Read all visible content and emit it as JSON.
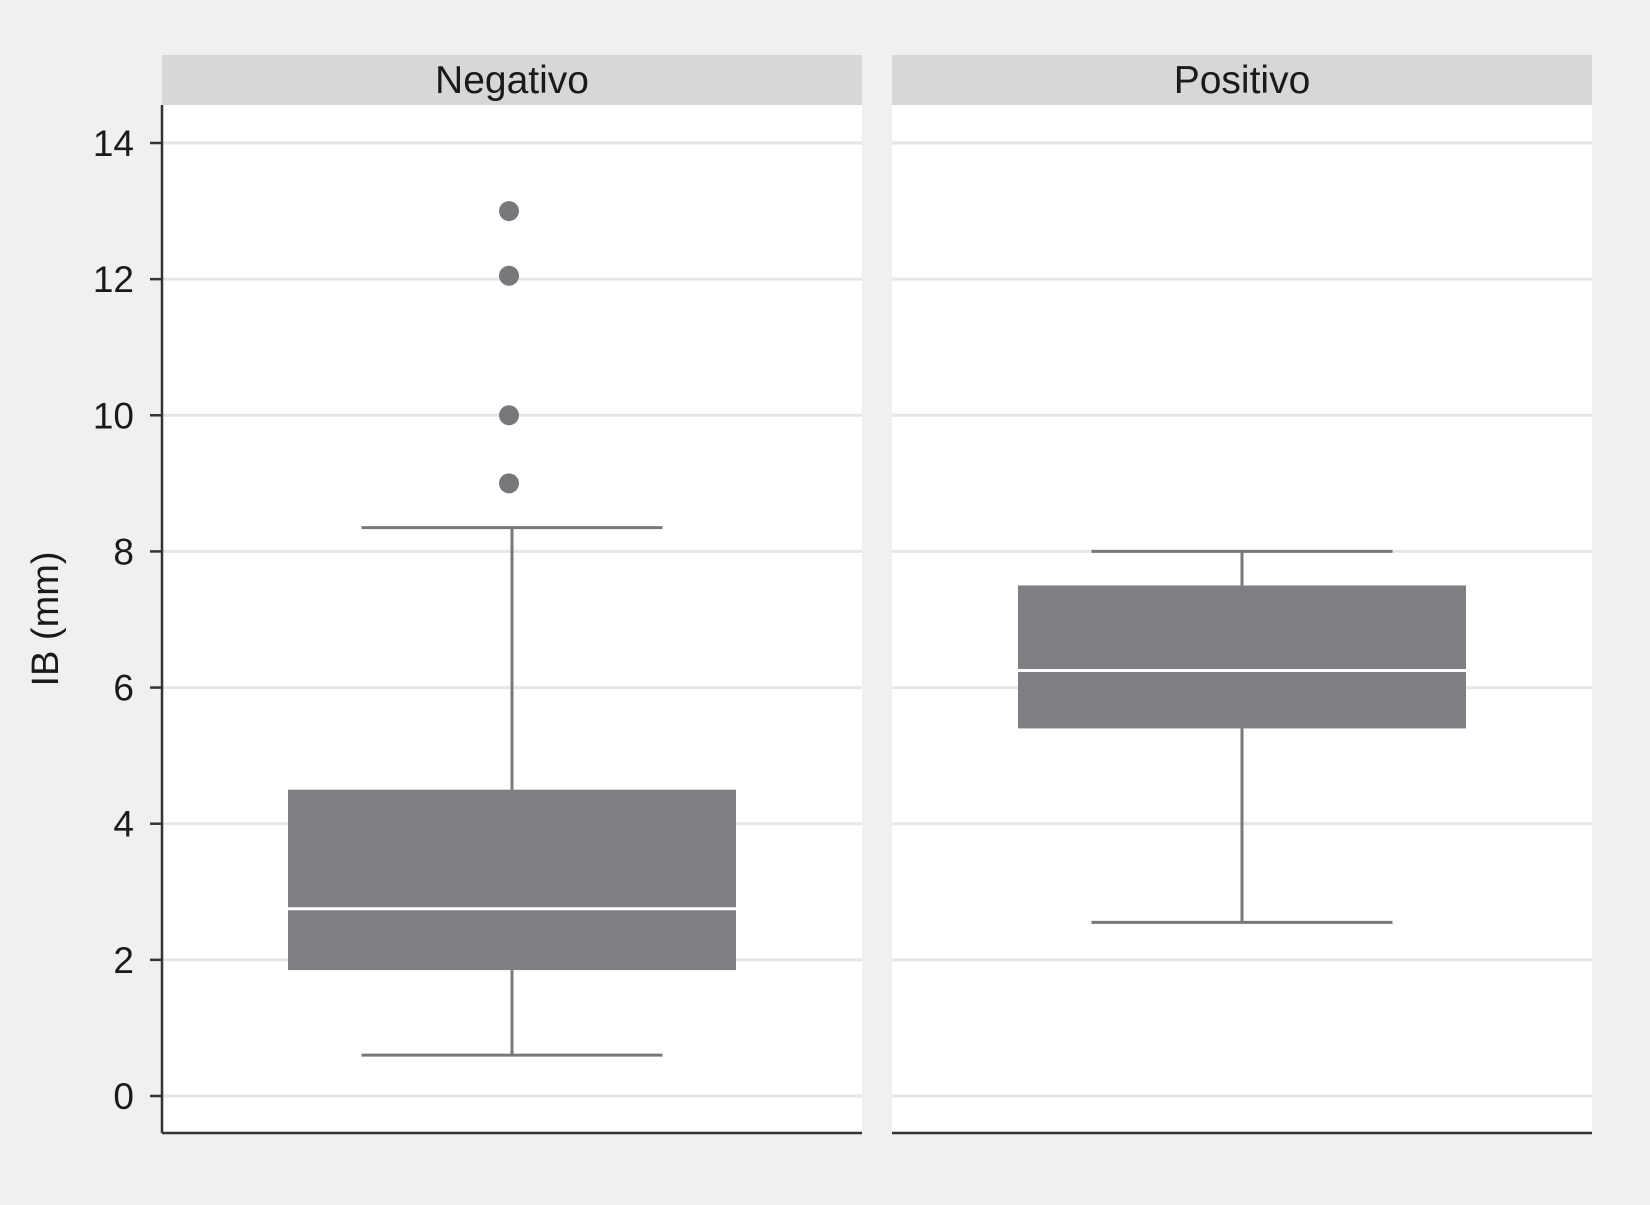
{
  "chart_data": {
    "type": "boxplot",
    "ylabel": "IB (mm)",
    "ylim": [
      -0.5,
      14.5
    ],
    "yticks": [
      0,
      2,
      4,
      6,
      8,
      10,
      12,
      14
    ],
    "grid": true,
    "legend": "none",
    "colors": {
      "background": "#f0f0f0",
      "panel": "#ffffff",
      "strip": "#d6d7d9",
      "box": "#7e7f83",
      "median": "#ffffff",
      "whisker": "#77787c",
      "outlier": "#77787c",
      "grid": "#e6e6e6",
      "axis": "#333333"
    },
    "panels": [
      {
        "label": "Negativo",
        "whisker_low": 0.6,
        "q1": 1.85,
        "median": 2.75,
        "q3": 4.5,
        "whisker_high": 8.35,
        "outliers": [
          9.0,
          10.0,
          12.05,
          13.0
        ]
      },
      {
        "label": "Positivo",
        "whisker_low": 2.55,
        "q1": 5.4,
        "median": 6.25,
        "q3": 7.5,
        "whisker_high": 8.0,
        "outliers": []
      }
    ]
  }
}
